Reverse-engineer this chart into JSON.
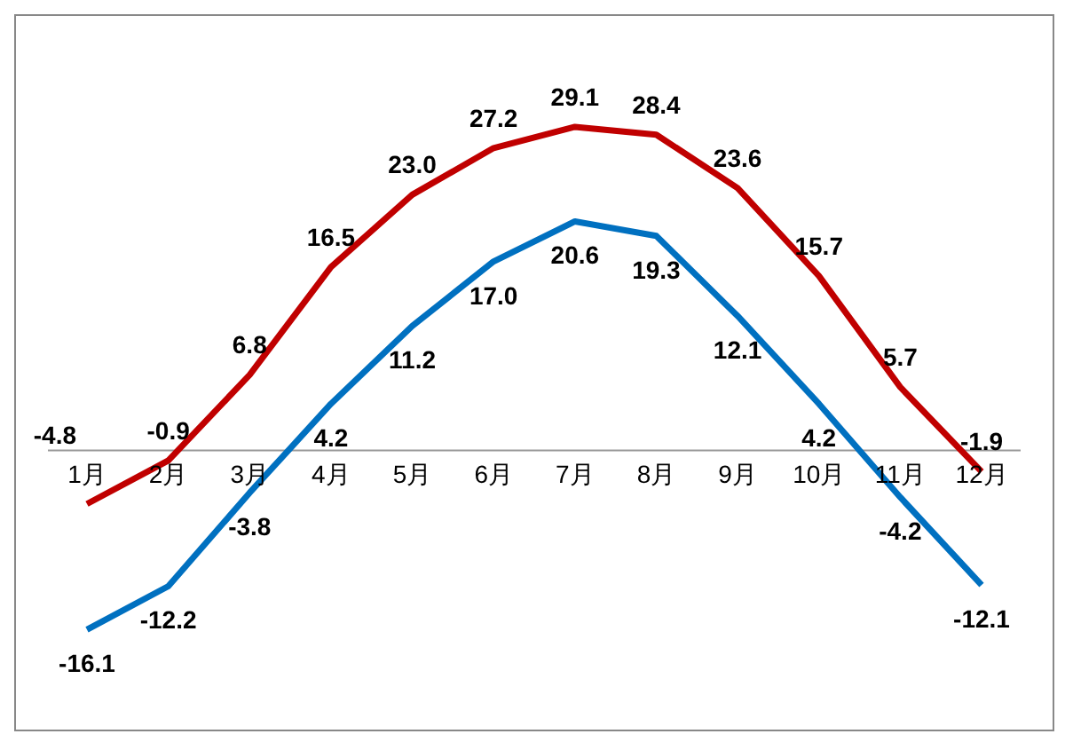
{
  "chart_data": {
    "type": "line",
    "categories": [
      "1月",
      "2月",
      "3月",
      "4月",
      "5月",
      "6月",
      "7月",
      "8月",
      "9月",
      "10月",
      "11月",
      "12月"
    ],
    "series": [
      {
        "color": "#c00000",
        "values": [
          -4.8,
          -0.9,
          6.8,
          16.5,
          23.0,
          27.2,
          29.1,
          28.4,
          23.6,
          15.7,
          5.7,
          -1.9
        ],
        "value_labels": [
          "-4.8",
          "-0.9",
          "6.8",
          "16.5",
          "23.0",
          "27.2",
          "29.1",
          "28.4",
          "23.6",
          "15.7",
          "5.7",
          "-1.9"
        ]
      },
      {
        "color": "#0070c0",
        "values": [
          -16.1,
          -12.2,
          -3.8,
          4.2,
          11.2,
          17.0,
          20.6,
          19.3,
          12.1,
          4.2,
          -4.2,
          -12.1
        ],
        "value_labels": [
          "-16.1",
          "-12.2",
          "-3.8",
          "4.2",
          "11.2",
          "17.0",
          "20.6",
          "19.3",
          "12.1",
          "4.2",
          "-4.2",
          "-12.1"
        ]
      }
    ],
    "marker": "none",
    "line_style": "solid",
    "tick_labels": "x"
  }
}
